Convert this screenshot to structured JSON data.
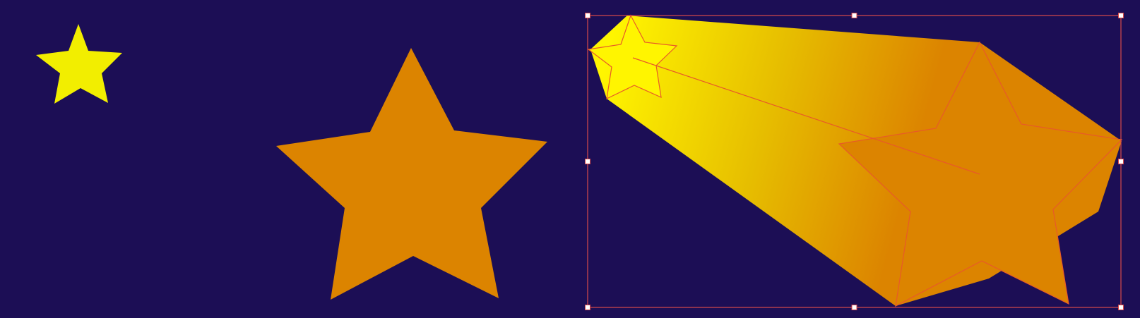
{
  "canvas": {
    "background": "#1c0e55"
  },
  "colors": {
    "small_star_fill": "#f2ee00",
    "big_star_fill": "#dc8400",
    "blend_start": "#fff500",
    "blend_mid": "#e6bd00",
    "blend_end": "#dc8400",
    "selection_stroke": "#d84a4a",
    "handle_fill": "#ffffff",
    "path_stroke": "#e85a28"
  },
  "objects": {
    "small_star": {
      "kind": "star",
      "icon": "star-icon"
    },
    "large_star": {
      "kind": "star",
      "icon": "star-icon"
    },
    "blend_group": {
      "kind": "blend",
      "selected": true,
      "handle_count": 8
    }
  }
}
